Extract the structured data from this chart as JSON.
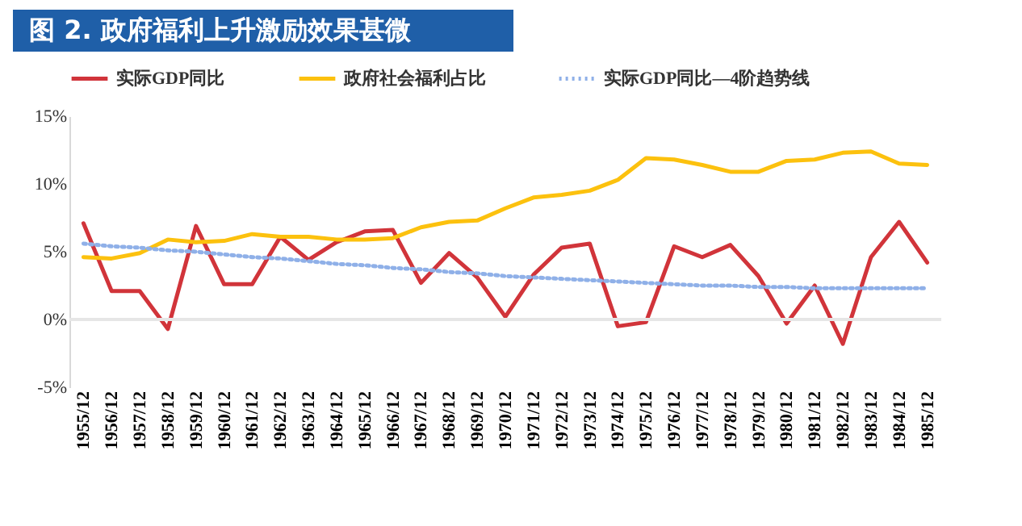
{
  "chart_data": {
    "type": "line",
    "title": "图 2. 政府福利上升激励效果甚微",
    "categories": [
      "1955/12",
      "1956/12",
      "1957/12",
      "1958/12",
      "1959/12",
      "1960/12",
      "1961/12",
      "1962/12",
      "1963/12",
      "1964/12",
      "1965/12",
      "1966/12",
      "1967/12",
      "1968/12",
      "1969/12",
      "1970/12",
      "1971/12",
      "1972/12",
      "1973/12",
      "1974/12",
      "1975/12",
      "1976/12",
      "1977/12",
      "1978/12",
      "1979/12",
      "1980/12",
      "1981/12",
      "1982/12",
      "1983/12",
      "1984/12",
      "1985/12"
    ],
    "series": [
      {
        "name": "实际GDP同比",
        "color": "#d1343a",
        "values": [
          7.1,
          2.1,
          2.1,
          -0.7,
          6.9,
          2.6,
          2.6,
          6.1,
          4.4,
          5.7,
          6.5,
          6.6,
          2.7,
          4.9,
          3.1,
          0.2,
          3.3,
          5.3,
          5.6,
          -0.5,
          -0.2,
          5.4,
          4.6,
          5.5,
          3.2,
          -0.3,
          2.5,
          -1.8,
          4.6,
          7.2,
          4.2
        ]
      },
      {
        "name": "政府社会福利占比",
        "color": "#fcc10e",
        "values": [
          4.6,
          4.5,
          4.9,
          5.9,
          5.7,
          5.8,
          6.3,
          6.1,
          6.1,
          5.9,
          5.9,
          6.0,
          6.8,
          7.2,
          7.3,
          8.2,
          9.0,
          9.2,
          9.5,
          10.3,
          11.9,
          11.8,
          11.4,
          10.9,
          10.9,
          11.7,
          11.8,
          12.3,
          12.4,
          11.5,
          11.4
        ]
      },
      {
        "name": "实际GDP同比—4阶趋势线",
        "color": "#8fb0e8",
        "line_style": "dotted",
        "values": [
          5.6,
          5.4,
          5.3,
          5.1,
          5.0,
          4.8,
          4.6,
          4.5,
          4.3,
          4.1,
          4.0,
          3.8,
          3.7,
          3.5,
          3.4,
          3.2,
          3.1,
          3.0,
          2.9,
          2.8,
          2.7,
          2.6,
          2.5,
          2.5,
          2.4,
          2.4,
          2.3,
          2.3,
          2.3,
          2.3,
          2.3
        ]
      }
    ],
    "ylim": [
      -5,
      15
    ],
    "yticks": [
      {
        "value": -5,
        "label": "-5%"
      },
      {
        "value": 0,
        "label": "0%"
      },
      {
        "value": 5,
        "label": "5%"
      },
      {
        "value": 10,
        "label": "10%"
      },
      {
        "value": 15,
        "label": "15%"
      }
    ],
    "ref_lines": [
      {
        "axis": "y",
        "value": 0,
        "color": "#e6e6e6"
      }
    ],
    "legend": "top",
    "line_style": "solid"
  }
}
